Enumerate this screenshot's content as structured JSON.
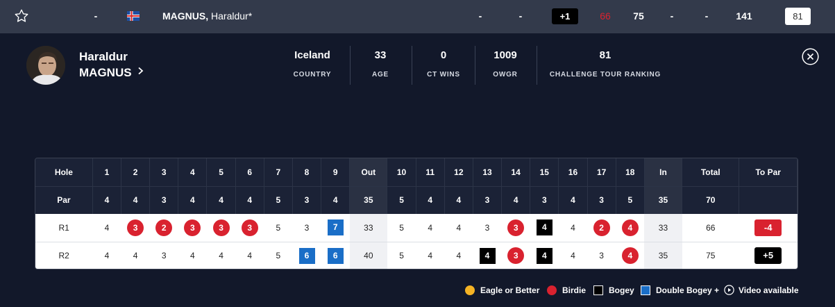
{
  "top_row": {
    "pos": "-",
    "player_name_bold": "MAGNUS,",
    "player_name_rest": " Haraldur*",
    "col_a": "-",
    "col_b": "-",
    "to_par": "+1",
    "r1": "66",
    "r2": "75",
    "r3": "-",
    "r4": "-",
    "total": "141",
    "ranking": "81"
  },
  "profile": {
    "first_name": "Haraldur",
    "last_name": "MAGNUS",
    "stats": [
      {
        "value": "Iceland",
        "label": "COUNTRY"
      },
      {
        "value": "33",
        "label": "AGE"
      },
      {
        "value": "0",
        "label": "CT WINS"
      },
      {
        "value": "1009",
        "label": "OWGR"
      },
      {
        "value": "81",
        "label": "CHALLENGE TOUR RANKING"
      }
    ]
  },
  "scorecard": {
    "header": [
      "Hole",
      "1",
      "2",
      "3",
      "4",
      "5",
      "6",
      "7",
      "8",
      "9",
      "Out",
      "10",
      "11",
      "12",
      "13",
      "14",
      "15",
      "16",
      "17",
      "18",
      "In",
      "Total",
      "To Par"
    ],
    "par": [
      "Par",
      "4",
      "4",
      "3",
      "4",
      "4",
      "4",
      "5",
      "3",
      "4",
      "35",
      "5",
      "4",
      "4",
      "3",
      "4",
      "3",
      "4",
      "3",
      "5",
      "35",
      "70",
      ""
    ],
    "rounds": [
      {
        "label": "R1",
        "scores": [
          "4",
          "3",
          "2",
          "3",
          "3",
          "3",
          "5",
          "3",
          "7",
          "33",
          "5",
          "4",
          "4",
          "3",
          "3",
          "4",
          "4",
          "2",
          "4",
          "33",
          "66"
        ],
        "types": [
          "",
          "birdie",
          "birdie",
          "birdie",
          "birdie",
          "birdie",
          "",
          "",
          "double",
          "sum",
          "",
          "",
          "",
          "",
          "birdie",
          "bogey",
          "",
          "birdie",
          "birdie",
          "sum",
          ""
        ],
        "to_par": "-4",
        "to_par_style": "red"
      },
      {
        "label": "R2",
        "scores": [
          "4",
          "4",
          "3",
          "4",
          "4",
          "4",
          "5",
          "6",
          "6",
          "40",
          "5",
          "4",
          "4",
          "4",
          "3",
          "4",
          "4",
          "3",
          "4",
          "35",
          "75"
        ],
        "types": [
          "",
          "",
          "",
          "",
          "",
          "",
          "",
          "double",
          "double",
          "sum",
          "",
          "",
          "",
          "bogey",
          "birdie",
          "bogey",
          "",
          "",
          "birdie",
          "sum",
          ""
        ],
        "to_par": "+5",
        "to_par_style": "black"
      }
    ]
  },
  "legend": {
    "eagle": "Eagle or Better",
    "birdie": "Birdie",
    "bogey": "Bogey",
    "double": "Double Bogey +",
    "video": "Video available",
    "colors": {
      "eagle": "#f5b324",
      "birdie": "#d9222f",
      "bogey": "#000000",
      "double": "#1a6ec7"
    }
  }
}
